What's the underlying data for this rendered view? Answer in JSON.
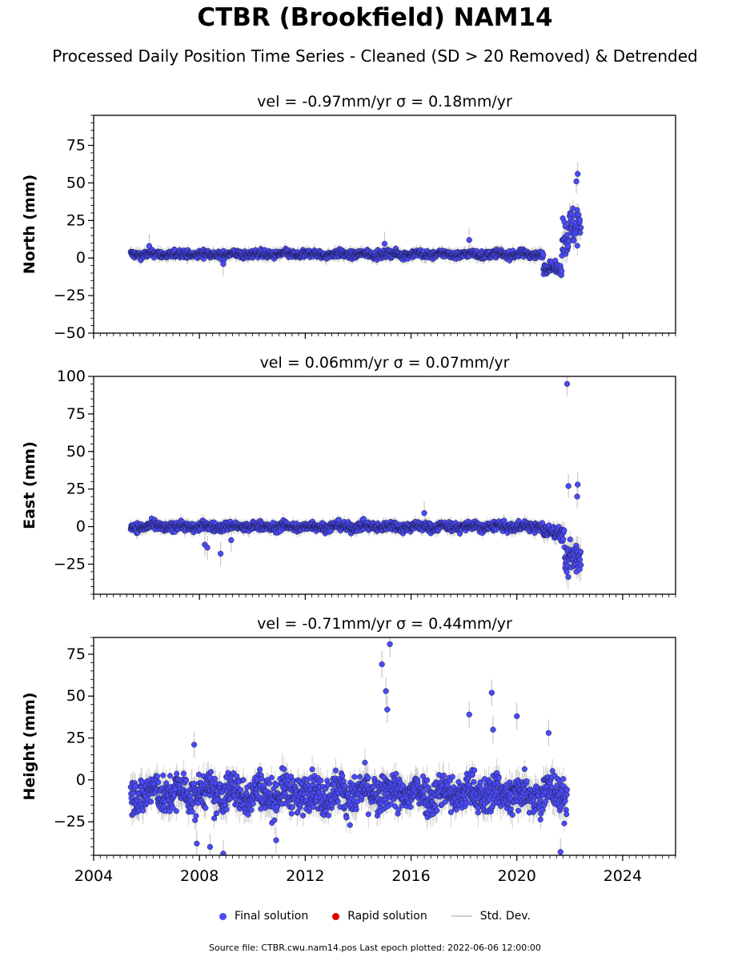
{
  "figure": {
    "title": "CTBR (Brookfield) NAM14",
    "subtitle": "Processed Daily Position Time Series - Cleaned (SD > 20 Removed) & Detrended",
    "footer": "Source file: CTBR.cwu.nam14.pos  Last epoch plotted: 2022-06-06 12:00:00"
  },
  "legend": {
    "items": [
      {
        "label": "Final solution",
        "color": "#4b4bf5",
        "kind": "dot"
      },
      {
        "label": "Rapid solution",
        "color": "#e00000",
        "kind": "dot"
      },
      {
        "label": "Std. Dev.",
        "color": "#d0d0d0",
        "kind": "line"
      }
    ]
  },
  "colors": {
    "final": "#4b4bf5",
    "rapid": "#e00000",
    "stddev": "#c8c8c8",
    "edge": "#1a1a4a"
  },
  "chart_data": [
    {
      "type": "scatter",
      "title": "vel = -0.97mm/yr   σ = 0.18mm/yr",
      "ylabel": "North (mm)",
      "xlim": [
        2004,
        2026
      ],
      "ylim": [
        -50,
        95
      ],
      "yticks": [
        -50,
        -25,
        0,
        25,
        50,
        75
      ],
      "xticks": [
        2004,
        2008,
        2012,
        2016,
        2020,
        2024
      ],
      "series_profile": [
        {
          "x0": 2005.4,
          "x1": 2021.0,
          "level": 2.5,
          "noise": 1.8,
          "sd": 3
        },
        {
          "x0": 2021.0,
          "x1": 2021.7,
          "level": -7,
          "noise": 2.5,
          "sd": 3
        },
        {
          "x0": 2021.7,
          "x1": 2022.43,
          "level": 18,
          "noise": 10,
          "sd": 6
        }
      ],
      "outliers": [
        [
          2015.0,
          9.5
        ],
        [
          2018.2,
          12
        ],
        [
          2006.1,
          8
        ],
        [
          2008.9,
          -4
        ],
        [
          2022.3,
          56
        ],
        [
          2022.25,
          51
        ]
      ]
    },
    {
      "type": "scatter",
      "title": "vel = 0.06mm/yr   σ = 0.07mm/yr",
      "ylabel": "East (mm)",
      "xlim": [
        2004,
        2026
      ],
      "ylim": [
        -45,
        100
      ],
      "yticks": [
        -25,
        0,
        25,
        50,
        75,
        100
      ],
      "xticks": [
        2004,
        2008,
        2012,
        2016,
        2020,
        2024
      ],
      "series_profile": [
        {
          "x0": 2005.4,
          "x1": 2021.0,
          "level": 0,
          "noise": 2.2,
          "sd": 3
        },
        {
          "x0": 2021.0,
          "x1": 2021.8,
          "level": -4,
          "noise": 3,
          "sd": 4
        },
        {
          "x0": 2021.8,
          "x1": 2022.43,
          "level": -22,
          "noise": 9,
          "sd": 7
        }
      ],
      "outliers": [
        [
          2008.2,
          -12
        ],
        [
          2008.3,
          -14
        ],
        [
          2008.8,
          -18
        ],
        [
          2009.2,
          -9
        ],
        [
          2016.5,
          9
        ],
        [
          2021.9,
          95
        ],
        [
          2021.95,
          27
        ],
        [
          2022.3,
          28
        ],
        [
          2022.28,
          20
        ]
      ]
    },
    {
      "type": "scatter",
      "title": "vel = -0.71mm/yr   σ = 0.44mm/yr",
      "ylabel": "Height (mm)",
      "xlim": [
        2004,
        2026
      ],
      "ylim": [
        -45,
        85
      ],
      "yticks": [
        -25,
        0,
        25,
        50,
        75
      ],
      "xticks": [
        2004,
        2008,
        2012,
        2016,
        2020,
        2024
      ],
      "xticklabels": [
        "2004",
        "2008",
        "2012",
        "2016",
        "2020",
        "2024"
      ],
      "series_profile": [
        {
          "x0": 2005.4,
          "x1": 2021.9,
          "level": -8,
          "noise": 8,
          "sd": 6
        }
      ],
      "outliers": [
        [
          2007.8,
          21
        ],
        [
          2007.9,
          -38
        ],
        [
          2008.4,
          -40
        ],
        [
          2008.9,
          -44
        ],
        [
          2010.9,
          -36
        ],
        [
          2014.9,
          69
        ],
        [
          2015.05,
          53
        ],
        [
          2015.1,
          42
        ],
        [
          2015.2,
          81
        ],
        [
          2018.2,
          39
        ],
        [
          2019.05,
          52
        ],
        [
          2019.1,
          30
        ],
        [
          2020.0,
          38
        ],
        [
          2021.65,
          -43
        ],
        [
          2021.2,
          28
        ]
      ]
    }
  ]
}
